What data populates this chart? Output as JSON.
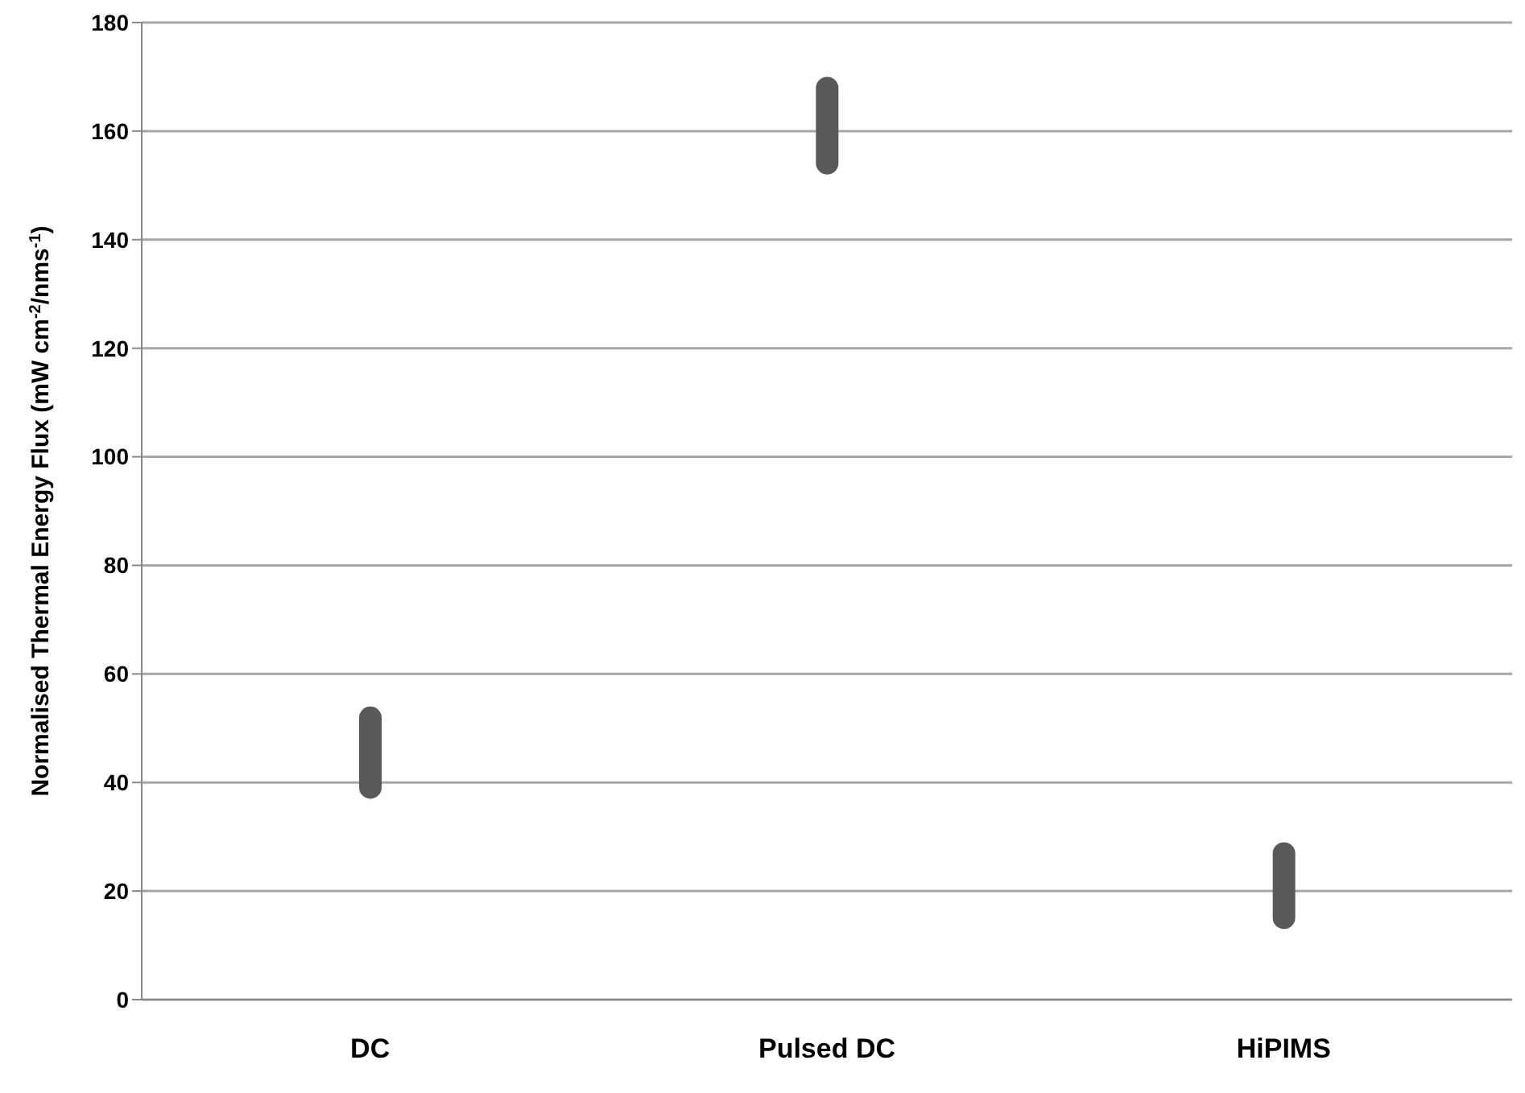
{
  "chart_data": {
    "type": "bar",
    "ylabel": "Normalised Thermal Energy Flux (mW cm$^{-2}$/nms$^{-1}$)",
    "categories": [
      "DC",
      "Pulsed DC",
      "HiPIMS"
    ],
    "values": [
      17,
      18,
      16
    ],
    "base": [
      37,
      152,
      13
    ],
    "color": "#595959",
    "ylim": [
      0,
      180
    ],
    "yticks": [
      0,
      20,
      40,
      60,
      80,
      100,
      120,
      140,
      160,
      180
    ],
    "grid": "y"
  }
}
